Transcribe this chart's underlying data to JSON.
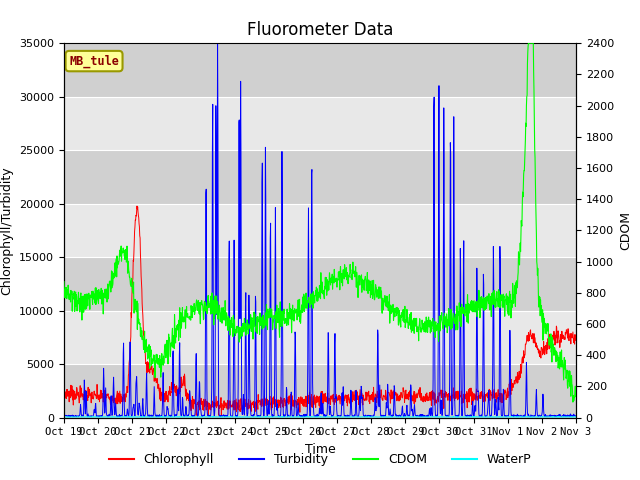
{
  "title": "Fluorometer Data",
  "xlabel": "Time",
  "ylabel_left": "Chlorophyll/Turbidity",
  "ylabel_right": "CDOM",
  "ylim_left": [
    0,
    35000
  ],
  "ylim_right": [
    0,
    2400
  ],
  "xtick_labels": [
    "Oct 19",
    "Oct 20",
    "Oct 21",
    "Oct 22",
    "Oct 23",
    "Oct 24",
    "Oct 25",
    "Oct 26",
    "Oct 27",
    "Oct 28",
    "Oct 29",
    "Oct 30",
    "Oct 31",
    "Nov 1",
    "Nov 2",
    "Nov 3"
  ],
  "legend_labels": [
    "Chlorophyll",
    "Turbidity",
    "CDOM",
    "WaterP"
  ],
  "legend_colors": [
    "red",
    "blue",
    "green",
    "cyan"
  ],
  "station_label": "MB_tule",
  "station_label_color": "#8B0000",
  "station_box_facecolor": "#FFFF99",
  "station_box_edgecolor": "#999900",
  "plot_bg_light": "#E8E8E8",
  "plot_bg_dark": "#D0D0D0",
  "title_fontsize": 12,
  "axis_label_fontsize": 9,
  "tick_fontsize": 8
}
